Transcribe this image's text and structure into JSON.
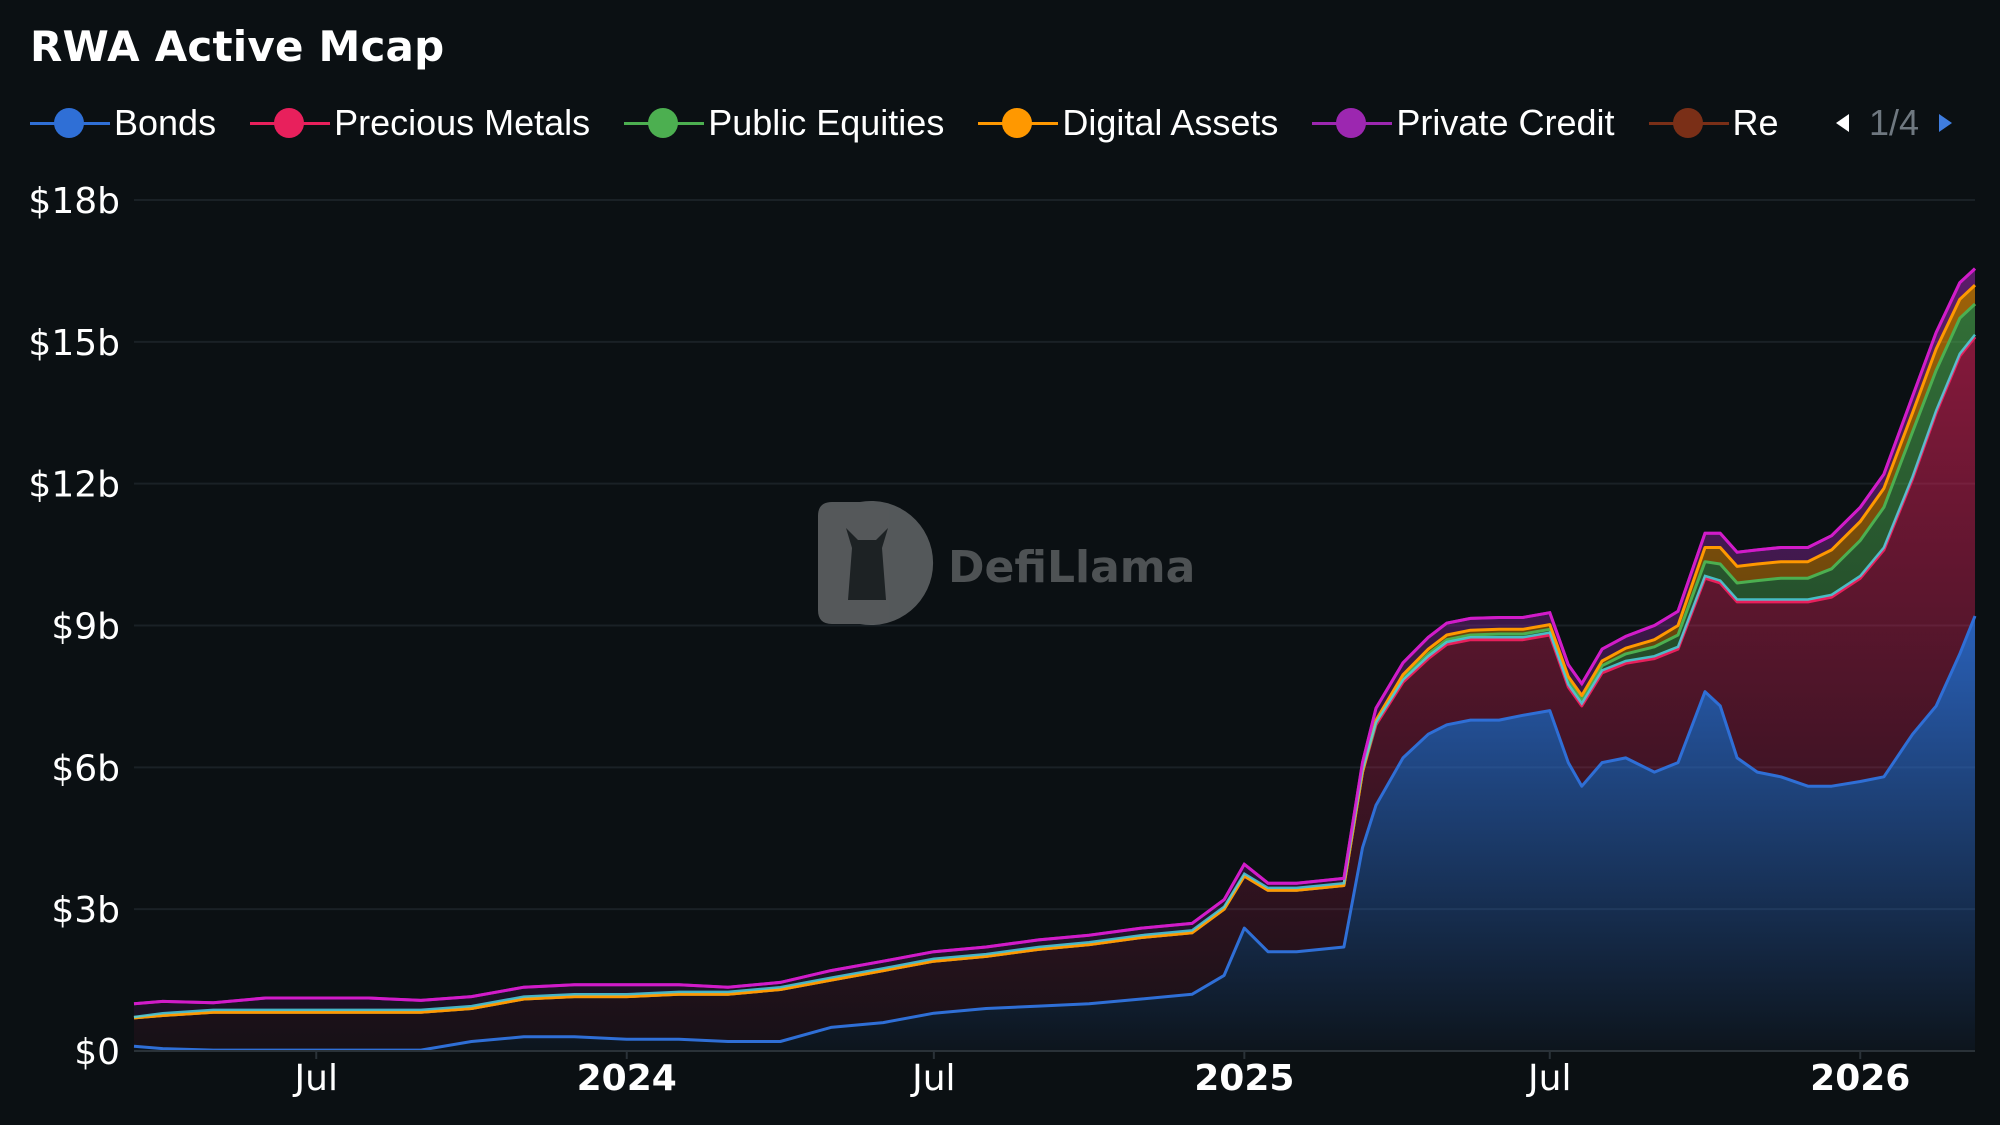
{
  "title": "RWA Active Mcap",
  "legend": {
    "items": [
      {
        "label": "Bonds",
        "color": "#2f6fd6"
      },
      {
        "label": "Precious Metals",
        "color": "#e8205c"
      },
      {
        "label": "Public Equities",
        "color": "#4caf50"
      },
      {
        "label": "Digital Assets",
        "color": "#ff9800"
      },
      {
        "label": "Private Credit",
        "color": "#9c27b0"
      },
      {
        "label": "Re",
        "color": "#7a2f17"
      }
    ],
    "page_text": "1/4"
  },
  "watermark": {
    "text": "DefiLlama",
    "icon": "llama-logo-icon"
  },
  "colors": {
    "background": "#0b1013",
    "grid": "#1a2126",
    "bonds": "#2f6fd6",
    "precious_metals": "#e8205c",
    "public_equities": "#4caf50",
    "digital_assets": "#ff9800",
    "private_credit": "#9c27b0",
    "cyan_band": "#4dd0e1",
    "magenta_band": "#d81bcc"
  },
  "chart_data": {
    "type": "area",
    "stacked": true,
    "title": "RWA Active Mcap",
    "xlabel": "",
    "ylabel": "",
    "ylim": [
      0,
      18
    ],
    "y_unit": "billions USD",
    "y_ticks": [
      "$0",
      "$3b",
      "$6b",
      "$9b",
      "$12b",
      "$15b",
      "$18b"
    ],
    "y_tick_values": [
      0,
      3,
      6,
      9,
      12,
      15,
      18
    ],
    "x_range": [
      "2023-03-15",
      "2026-03-10"
    ],
    "x_ticks": [
      {
        "date": "2023-07-01",
        "label": "Jul",
        "major": false
      },
      {
        "date": "2024-01-01",
        "label": "2024",
        "major": true
      },
      {
        "date": "2024-07-01",
        "label": "Jul",
        "major": false
      },
      {
        "date": "2025-01-01",
        "label": "2025",
        "major": true
      },
      {
        "date": "2025-07-01",
        "label": "Jul",
        "major": false
      },
      {
        "date": "2026-01-01",
        "label": "2026",
        "major": true
      }
    ],
    "grid": true,
    "legend_position": "top",
    "x": [
      "2023-03-15",
      "2023-04-01",
      "2023-05-01",
      "2023-06-01",
      "2023-07-01",
      "2023-08-01",
      "2023-09-01",
      "2023-10-01",
      "2023-11-01",
      "2023-12-01",
      "2024-01-01",
      "2024-02-01",
      "2024-03-01",
      "2024-04-01",
      "2024-05-01",
      "2024-06-01",
      "2024-07-01",
      "2024-08-01",
      "2024-09-01",
      "2024-10-01",
      "2024-11-01",
      "2024-12-01",
      "2024-12-20",
      "2025-01-01",
      "2025-01-15",
      "2025-02-01",
      "2025-03-01",
      "2025-03-12",
      "2025-03-20",
      "2025-04-05",
      "2025-04-20",
      "2025-05-01",
      "2025-05-15",
      "2025-06-01",
      "2025-06-15",
      "2025-07-01",
      "2025-07-12",
      "2025-07-20",
      "2025-08-01",
      "2025-08-15",
      "2025-09-01",
      "2025-09-15",
      "2025-10-01",
      "2025-10-10",
      "2025-10-20",
      "2025-11-01",
      "2025-11-15",
      "2025-12-01",
      "2025-12-15",
      "2026-01-01",
      "2026-01-15",
      "2026-02-01",
      "2026-02-15",
      "2026-03-01",
      "2026-03-10"
    ],
    "series": [
      {
        "name": "Bonds",
        "values": [
          0.1,
          0.05,
          0.02,
          0.02,
          0.02,
          0.02,
          0.02,
          0.2,
          0.3,
          0.3,
          0.25,
          0.25,
          0.2,
          0.2,
          0.5,
          0.6,
          0.8,
          0.9,
          0.95,
          1.0,
          1.1,
          1.2,
          1.6,
          2.6,
          2.1,
          2.1,
          2.2,
          4.3,
          5.2,
          6.2,
          6.7,
          6.9,
          7.0,
          7.0,
          7.1,
          7.2,
          6.1,
          5.6,
          6.1,
          6.2,
          5.9,
          6.1,
          7.6,
          7.3,
          6.2,
          5.9,
          5.8,
          5.6,
          5.6,
          5.7,
          5.8,
          6.7,
          7.3,
          8.4,
          9.2
        ]
      },
      {
        "name": "Precious Metals",
        "values": [
          0.6,
          0.7,
          0.8,
          0.8,
          0.8,
          0.8,
          0.8,
          0.7,
          0.8,
          0.85,
          0.9,
          0.95,
          1.0,
          1.1,
          1.0,
          1.1,
          1.1,
          1.1,
          1.2,
          1.25,
          1.3,
          1.3,
          1.4,
          1.1,
          1.3,
          1.3,
          1.3,
          1.6,
          1.7,
          1.6,
          1.6,
          1.7,
          1.7,
          1.7,
          1.6,
          1.6,
          1.6,
          1.7,
          1.9,
          2.0,
          2.4,
          2.4,
          2.4,
          2.6,
          3.3,
          3.6,
          3.7,
          3.9,
          4.0,
          4.3,
          4.8,
          5.4,
          6.2,
          6.3,
          5.9
        ]
      },
      {
        "name": "Public Equities",
        "values": [
          0.0,
          0.0,
          0.0,
          0.0,
          0.0,
          0.0,
          0.0,
          0.0,
          0.0,
          0.0,
          0.0,
          0.0,
          0.0,
          0.0,
          0.0,
          0.0,
          0.0,
          0.0,
          0.0,
          0.0,
          0.0,
          0.0,
          0.0,
          0.0,
          0.0,
          0.0,
          0.0,
          0.0,
          0.05,
          0.08,
          0.1,
          0.1,
          0.1,
          0.12,
          0.12,
          0.12,
          0.12,
          0.12,
          0.15,
          0.2,
          0.25,
          0.3,
          0.35,
          0.4,
          0.4,
          0.45,
          0.5,
          0.5,
          0.6,
          0.8,
          0.9,
          1.0,
          0.9,
          0.8,
          0.7
        ]
      },
      {
        "name": "Digital Assets",
        "values": [
          0.0,
          0.0,
          0.0,
          0.0,
          0.0,
          0.0,
          0.0,
          0.0,
          0.0,
          0.0,
          0.0,
          0.0,
          0.0,
          0.0,
          0.0,
          0.0,
          0.0,
          0.0,
          0.0,
          0.0,
          0.0,
          0.0,
          0.0,
          0.0,
          0.0,
          0.0,
          0.0,
          0.0,
          0.05,
          0.08,
          0.1,
          0.1,
          0.1,
          0.1,
          0.1,
          0.1,
          0.1,
          0.1,
          0.1,
          0.12,
          0.15,
          0.2,
          0.3,
          0.35,
          0.35,
          0.35,
          0.35,
          0.35,
          0.4,
          0.4,
          0.4,
          0.4,
          0.45,
          0.4,
          0.4
        ]
      },
      {
        "name": "Private Credit",
        "values": [
          0.3,
          0.3,
          0.2,
          0.3,
          0.3,
          0.3,
          0.25,
          0.25,
          0.25,
          0.25,
          0.25,
          0.2,
          0.15,
          0.15,
          0.2,
          0.2,
          0.2,
          0.2,
          0.2,
          0.2,
          0.2,
          0.2,
          0.2,
          0.25,
          0.15,
          0.15,
          0.15,
          0.2,
          0.25,
          0.25,
          0.25,
          0.25,
          0.25,
          0.25,
          0.25,
          0.25,
          0.25,
          0.25,
          0.25,
          0.25,
          0.3,
          0.3,
          0.3,
          0.3,
          0.3,
          0.3,
          0.3,
          0.3,
          0.3,
          0.3,
          0.3,
          0.35,
          0.35,
          0.35,
          0.35
        ]
      }
    ]
  },
  "x_axis": {
    "labels": [
      "Jul",
      "2024",
      "Jul",
      "2025",
      "Jul",
      "2026"
    ]
  },
  "y_axis": {
    "labels": [
      "$0",
      "$3b",
      "$6b",
      "$9b",
      "$12b",
      "$15b",
      "$18b"
    ]
  }
}
